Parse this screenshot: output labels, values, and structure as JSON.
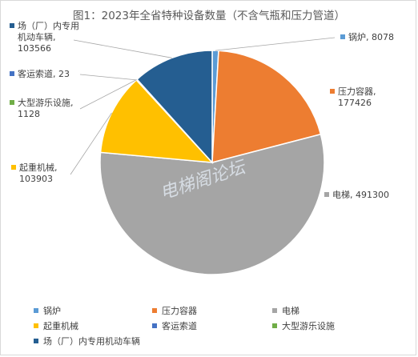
{
  "chart_data": {
    "type": "pie",
    "title": "图1：2023年全省特种设备数量（不含气瓶和压力管道）",
    "watermark": "电梯阁论坛",
    "slices": [
      {
        "name": "锅炉",
        "value": 8078,
        "label": "锅炉, 8078",
        "color": "#5b9bd5"
      },
      {
        "name": "压力容器",
        "value": 177426,
        "label_lines": [
          "压力容器,",
          "177426"
        ],
        "color": "#ed7d31"
      },
      {
        "name": "电梯",
        "value": 491300,
        "label": "电梯, 491300",
        "color": "#a5a5a5"
      },
      {
        "name": "起重机械",
        "value": 103903,
        "label_lines": [
          "起重机械,",
          "103903"
        ],
        "color": "#ffc000"
      },
      {
        "name": "客运索道",
        "value": 23,
        "label": "客运索道, 23",
        "color": "#4472c4"
      },
      {
        "name": "大型游乐设施",
        "value": 1128,
        "label_lines": [
          "大型游乐设施,",
          "1128"
        ],
        "color": "#70ad47"
      },
      {
        "name": "场（厂）内专用机动车辆",
        "value": 103566,
        "label_lines": [
          "场（厂）内专用",
          "机动车辆,",
          "103566"
        ],
        "color": "#255e91"
      }
    ],
    "legend_position": "bottom"
  }
}
